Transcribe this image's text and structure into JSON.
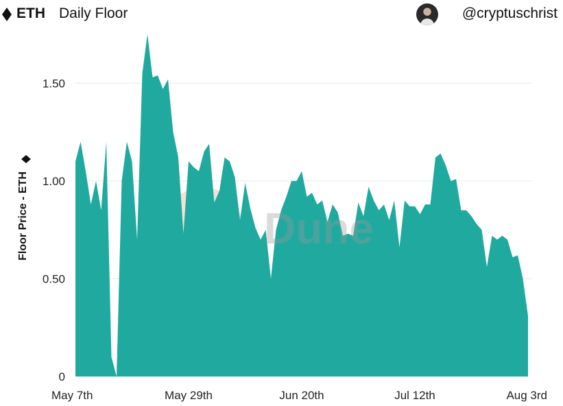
{
  "header": {
    "brand": "ETH",
    "title": "Daily Floor",
    "author": "@cryptuschrist"
  },
  "watermark": {
    "text": "Dune"
  },
  "colors": {
    "area": "#20a99e",
    "grid": "#e6e6e6",
    "text": "#222222"
  },
  "chart_data": {
    "type": "area",
    "ylabel": "Floor Price - ETH",
    "ylim": [
      0,
      1.75
    ],
    "yticks": [
      {
        "value": 0,
        "label": "0"
      },
      {
        "value": 0.5,
        "label": "0.50"
      },
      {
        "value": 1.0,
        "label": "1.00"
      },
      {
        "value": 1.5,
        "label": "1.50"
      }
    ],
    "xticks": [
      {
        "date": "2022-05-07",
        "label": "May 7th"
      },
      {
        "date": "2022-05-29",
        "label": "May 29th"
      },
      {
        "date": "2022-06-20",
        "label": "Jun 20th"
      },
      {
        "date": "2022-07-12",
        "label": "Jul 12th"
      },
      {
        "date": "2022-08-03",
        "label": "Aug 3rd"
      }
    ],
    "series": [
      {
        "x": [
          "2022-05-07",
          "2022-05-08",
          "2022-05-09",
          "2022-05-10",
          "2022-05-11",
          "2022-05-12",
          "2022-05-13",
          "2022-05-14",
          "2022-05-15",
          "2022-05-16",
          "2022-05-17",
          "2022-05-18",
          "2022-05-19",
          "2022-05-20",
          "2022-05-21",
          "2022-05-22",
          "2022-05-23",
          "2022-05-24",
          "2022-05-25",
          "2022-05-26",
          "2022-05-27",
          "2022-05-28",
          "2022-05-29",
          "2022-05-30",
          "2022-05-31",
          "2022-06-01",
          "2022-06-02",
          "2022-06-03",
          "2022-06-04",
          "2022-06-05",
          "2022-06-06",
          "2022-06-07",
          "2022-06-08",
          "2022-06-09",
          "2022-06-10",
          "2022-06-11",
          "2022-06-12",
          "2022-06-13",
          "2022-06-14",
          "2022-06-15",
          "2022-06-16",
          "2022-06-17",
          "2022-06-18",
          "2022-06-19",
          "2022-06-20",
          "2022-06-21",
          "2022-06-22",
          "2022-06-23",
          "2022-06-24",
          "2022-06-25",
          "2022-06-26",
          "2022-06-27",
          "2022-06-28",
          "2022-06-29",
          "2022-06-30",
          "2022-07-01",
          "2022-07-02",
          "2022-07-03",
          "2022-07-04",
          "2022-07-05",
          "2022-07-06",
          "2022-07-07",
          "2022-07-08",
          "2022-07-09",
          "2022-07-10",
          "2022-07-11",
          "2022-07-12",
          "2022-07-13",
          "2022-07-14",
          "2022-07-15",
          "2022-07-16",
          "2022-07-17",
          "2022-07-18",
          "2022-07-19",
          "2022-07-20",
          "2022-07-21",
          "2022-07-22",
          "2022-07-23",
          "2022-07-24",
          "2022-07-25",
          "2022-07-26",
          "2022-07-27",
          "2022-07-28",
          "2022-07-29",
          "2022-07-30",
          "2022-07-31",
          "2022-08-01",
          "2022-08-02",
          "2022-08-03"
        ],
        "y": [
          1.1,
          1.2,
          1.05,
          0.88,
          1.0,
          0.85,
          1.2,
          0.1,
          0.0,
          1.0,
          1.2,
          1.1,
          0.7,
          1.55,
          1.75,
          1.53,
          1.54,
          1.47,
          1.52,
          1.25,
          1.12,
          0.73,
          1.1,
          1.07,
          1.05,
          1.15,
          1.19,
          0.89,
          0.95,
          1.12,
          1.1,
          1.02,
          0.8,
          0.99,
          0.86,
          0.76,
          0.7,
          0.75,
          0.5,
          0.75,
          0.85,
          0.92,
          1.0,
          1.0,
          1.05,
          0.92,
          0.94,
          0.88,
          0.9,
          0.79,
          0.88,
          0.84,
          0.72,
          0.73,
          0.72,
          0.89,
          0.82,
          0.97,
          0.9,
          0.85,
          0.88,
          0.8,
          0.9,
          0.66,
          0.9,
          0.87,
          0.87,
          0.83,
          0.88,
          0.88,
          1.12,
          1.14,
          1.08,
          1.0,
          1.01,
          0.85,
          0.85,
          0.82,
          0.78,
          0.75,
          0.56,
          0.72,
          0.7,
          0.72,
          0.7,
          0.61,
          0.62,
          0.5,
          0.31
        ]
      }
    ]
  }
}
